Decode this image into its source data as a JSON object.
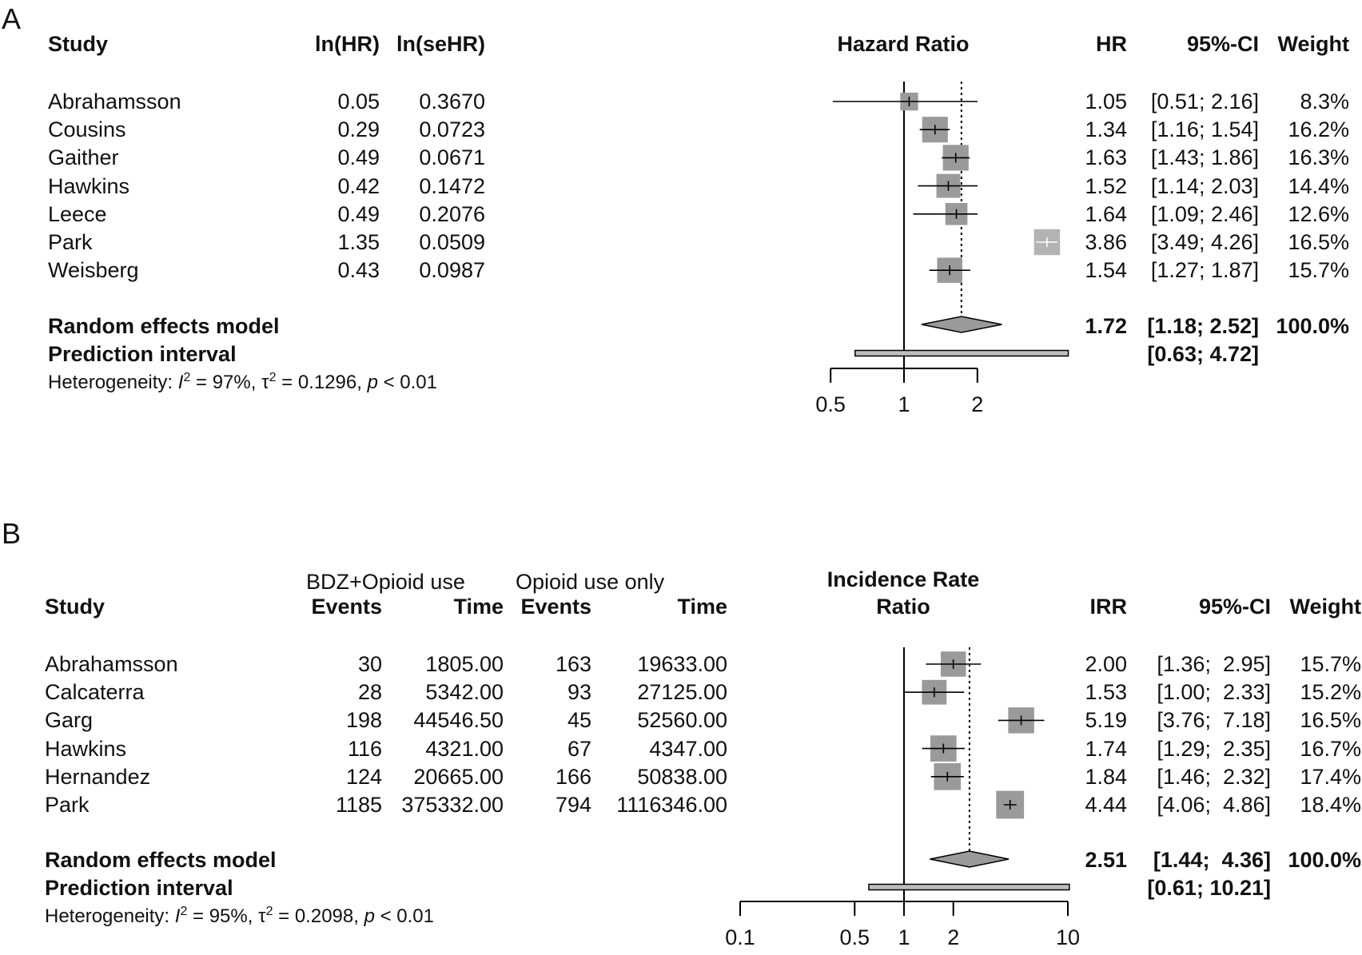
{
  "panels": [
    {
      "letter": "A",
      "headers": {
        "study": "Study",
        "c1": "ln(HR)",
        "c2": "ln(seHR)",
        "axis_title": "Hazard Ratio",
        "est": "HR",
        "ci": "95%-CI",
        "weight": "Weight"
      },
      "studies": [
        {
          "name": "Abrahamsson",
          "c1": "0.05",
          "c2": "0.3670",
          "est": "1.05",
          "ci": "[0.51; 2.16]",
          "weight": "8.3%"
        },
        {
          "name": "Cousins",
          "c1": "0.29",
          "c2": "0.0723",
          "est": "1.34",
          "ci": "[1.16; 1.54]",
          "weight": "16.2%"
        },
        {
          "name": "Gaither",
          "c1": "0.49",
          "c2": "0.0671",
          "est": "1.63",
          "ci": "[1.43; 1.86]",
          "weight": "16.3%"
        },
        {
          "name": "Hawkins",
          "c1": "0.42",
          "c2": "0.1472",
          "est": "1.52",
          "ci": "[1.14; 2.03]",
          "weight": "14.4%"
        },
        {
          "name": "Leece",
          "c1": "0.49",
          "c2": "0.2076",
          "est": "1.64",
          "ci": "[1.09; 2.46]",
          "weight": "12.6%"
        },
        {
          "name": "Park",
          "c1": "1.35",
          "c2": "0.0509",
          "est": "3.86",
          "ci": "[3.49; 4.26]",
          "weight": "16.5%"
        },
        {
          "name": "Weisberg",
          "c1": "0.43",
          "c2": "0.0987",
          "est": "1.54",
          "ci": "[1.27; 1.87]",
          "weight": "15.7%"
        }
      ],
      "summary": {
        "label": "Random effects model",
        "est": "1.72",
        "ci": "[1.18; 2.52]",
        "weight": "100.0%"
      },
      "prediction": {
        "label": "Prediction interval",
        "ci": "[0.63; 4.72]"
      },
      "heterogeneity": {
        "prefix": "Heterogeneity: ",
        "i2": "= 97%, ",
        "tau2": "= 0.1296, ",
        "p": "< 0.01"
      }
    },
    {
      "letter": "B",
      "group_headers": {
        "g1": "BDZ+Opioid use",
        "g2": "Opioid use only"
      },
      "headers": {
        "study": "Study",
        "g1_events": "Events",
        "g1_time": "Time",
        "g2_events": "Events",
        "g2_time": "Time",
        "axis_title_1": "Incidence Rate",
        "axis_title_2": "Ratio",
        "est": "IRR",
        "ci": "95%-CI",
        "weight": "Weight"
      },
      "studies": [
        {
          "name": "Abrahamsson",
          "e1": "30",
          "t1": "1805.00",
          "e2": "163",
          "t2": "19633.00",
          "est": "2.00",
          "ci": "[1.36;  2.95]",
          "weight": "15.7%"
        },
        {
          "name": "Calcaterra",
          "e1": "28",
          "t1": "5342.00",
          "e2": "93",
          "t2": "27125.00",
          "est": "1.53",
          "ci": "[1.00;  2.33]",
          "weight": "15.2%"
        },
        {
          "name": "Garg",
          "e1": "198",
          "t1": "44546.50",
          "e2": "45",
          "t2": "52560.00",
          "est": "5.19",
          "ci": "[3.76;  7.18]",
          "weight": "16.5%"
        },
        {
          "name": "Hawkins",
          "e1": "116",
          "t1": "4321.00",
          "e2": "67",
          "t2": "4347.00",
          "est": "1.74",
          "ci": "[1.29;  2.35]",
          "weight": "16.7%"
        },
        {
          "name": "Hernandez",
          "e1": "124",
          "t1": "20665.00",
          "e2": "166",
          "t2": "50838.00",
          "est": "1.84",
          "ci": "[1.46;  2.32]",
          "weight": "17.4%"
        },
        {
          "name": "Park",
          "e1": "1185",
          "t1": "375332.00",
          "e2": "794",
          "t2": "1116346.00",
          "est": "4.44",
          "ci": "[4.06;  4.86]",
          "weight": "18.4%"
        }
      ],
      "summary": {
        "label": "Random effects model",
        "est": "2.51",
        "ci": "[1.44;  4.36]",
        "weight": "100.0%"
      },
      "prediction": {
        "label": "Prediction interval",
        "ci": "[0.61; 10.21]"
      },
      "heterogeneity": {
        "prefix": "Heterogeneity: ",
        "i2": "= 95%, ",
        "tau2": "= 0.2098, ",
        "p": "< 0.01"
      }
    }
  ],
  "chart_data": [
    {
      "type": "forest",
      "x_scale": "log",
      "xlim": [
        0.5,
        2
      ],
      "xticks": [
        0.5,
        1,
        2
      ],
      "reference_line": 1,
      "studies": [
        {
          "study": "Abrahamsson",
          "estimate": 1.05,
          "lower": 0.51,
          "upper": 2.16,
          "weight": 8.3
        },
        {
          "study": "Cousins",
          "estimate": 1.34,
          "lower": 1.16,
          "upper": 1.54,
          "weight": 16.2
        },
        {
          "study": "Gaither",
          "estimate": 1.63,
          "lower": 1.43,
          "upper": 1.86,
          "weight": 16.3
        },
        {
          "study": "Hawkins",
          "estimate": 1.52,
          "lower": 1.14,
          "upper": 2.03,
          "weight": 14.4
        },
        {
          "study": "Leece",
          "estimate": 1.64,
          "lower": 1.09,
          "upper": 2.46,
          "weight": 12.6
        },
        {
          "study": "Park",
          "estimate": 3.86,
          "lower": 3.49,
          "upper": 4.26,
          "weight": 16.5
        },
        {
          "study": "Weisberg",
          "estimate": 1.54,
          "lower": 1.27,
          "upper": 1.87,
          "weight": 15.7
        }
      ],
      "summary": {
        "estimate": 1.72,
        "lower": 1.18,
        "upper": 2.52
      },
      "prediction_interval": {
        "lower": 0.63,
        "upper": 4.72
      }
    },
    {
      "type": "forest",
      "x_scale": "log",
      "xlim": [
        0.1,
        10
      ],
      "xticks": [
        0.1,
        0.5,
        1,
        2,
        10
      ],
      "reference_line": 1,
      "studies": [
        {
          "study": "Abrahamsson",
          "estimate": 2.0,
          "lower": 1.36,
          "upper": 2.95,
          "weight": 15.7
        },
        {
          "study": "Calcaterra",
          "estimate": 1.53,
          "lower": 1.0,
          "upper": 2.33,
          "weight": 15.2
        },
        {
          "study": "Garg",
          "estimate": 5.19,
          "lower": 3.76,
          "upper": 7.18,
          "weight": 16.5
        },
        {
          "study": "Hawkins",
          "estimate": 1.74,
          "lower": 1.29,
          "upper": 2.35,
          "weight": 16.7
        },
        {
          "study": "Hernandez",
          "estimate": 1.84,
          "lower": 1.46,
          "upper": 2.32,
          "weight": 17.4
        },
        {
          "study": "Park",
          "estimate": 4.44,
          "lower": 4.06,
          "upper": 4.86,
          "weight": 18.4
        }
      ],
      "summary": {
        "estimate": 2.51,
        "lower": 1.44,
        "upper": 4.36
      },
      "prediction_interval": {
        "lower": 0.61,
        "upper": 10.21
      }
    }
  ]
}
